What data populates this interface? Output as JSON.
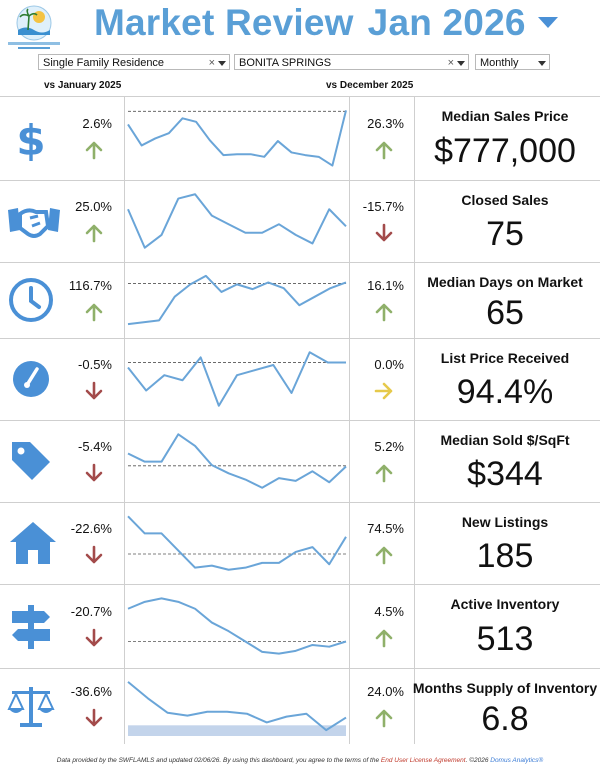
{
  "header": {
    "title_part1": "Market Review",
    "title_part2": "Jan 2026",
    "logo_text": "BONITA SPRINGS ESTERO REALTORS"
  },
  "filters": {
    "property_type": "Single Family Residence",
    "area": "BONITA SPRINGS",
    "period": "Monthly",
    "clear_glyph": "×"
  },
  "columns": {
    "left": "vs January 2025",
    "right": "vs December 2025"
  },
  "colors": {
    "title": "#5a9fd6",
    "icon": "#4a90d6",
    "up_arrow": "#8fb06a",
    "down_arrow": "#a34b4b",
    "neutral_arrow": "#e6c94a",
    "sparkline": "#6aa5d8"
  },
  "metrics": [
    {
      "label": "Median Sales Price",
      "value": "$777,000",
      "yoy": "2.6%",
      "yoy_dir": "up",
      "mom": "26.3%",
      "mom_dir": "up",
      "icon": "dollar-icon",
      "spark": [
        64,
        40,
        48,
        54,
        71,
        67,
        46,
        29,
        30,
        30,
        27,
        45,
        32,
        29,
        27,
        17,
        80
      ],
      "ref": 79
    },
    {
      "label": "Closed Sales",
      "value": "75",
      "yoy": "25.0%",
      "yoy_dir": "up",
      "mom": "-15.7%",
      "mom_dir": "down",
      "icon": "handshake-icon",
      "spark": [
        40,
        22,
        28,
        45,
        47,
        37,
        33,
        29,
        29,
        33,
        28,
        24,
        40,
        32
      ],
      "ref": null
    },
    {
      "label": "Median Days on Market",
      "value": "65",
      "yoy": "116.7%",
      "yoy_dir": "up",
      "mom": "16.1%",
      "mom_dir": "up",
      "icon": "clock-icon",
      "spark": [
        4,
        6,
        8,
        33,
        46,
        55,
        38,
        46,
        41,
        48,
        42,
        24,
        33,
        42,
        48
      ],
      "ref": 47
    },
    {
      "label": "List Price Received",
      "value": "94.4%",
      "yoy": "-0.5%",
      "yoy_dir": "down",
      "mom": "0.0%",
      "mom_dir": "neutral",
      "icon": "gauge-icon",
      "spark": [
        94.2,
        93.3,
        93.9,
        93.7,
        94.6,
        92.7,
        93.9,
        94.1,
        94.3,
        93.2,
        94.8,
        94.4,
        94.4
      ],
      "ref": 94.4
    },
    {
      "label": "Median Sold $/SqFt",
      "value": "$344",
      "yoy": "-5.4%",
      "yoy_dir": "down",
      "mom": "5.2%",
      "mom_dir": "up",
      "icon": "price-tag-icon",
      "spark": [
        362,
        350,
        350,
        390,
        373,
        345,
        333,
        324,
        312,
        326,
        322,
        336,
        320,
        343
      ],
      "ref": 344
    },
    {
      "label": "New Listings",
      "value": "185",
      "yoy": "-22.6%",
      "yoy_dir": "down",
      "mom": "74.5%",
      "mom_dir": "up",
      "icon": "house-icon",
      "spark": [
        240,
        215,
        215,
        190,
        165,
        168,
        162,
        165,
        172,
        172,
        188,
        195,
        170,
        210
      ],
      "ref": 185
    },
    {
      "label": "Active Inventory",
      "value": "513",
      "yoy": "-20.7%",
      "yoy_dir": "down",
      "mom": "4.5%",
      "mom_dir": "up",
      "icon": "signpost-icon",
      "spark": [
        640,
        660,
        670,
        660,
        640,
        600,
        575,
        545,
        515,
        510,
        518,
        535,
        530,
        545
      ],
      "ref": 545
    },
    {
      "label": "Months Supply of Inventory",
      "value": "6.8",
      "yoy": "-36.6%",
      "yoy_dir": "down",
      "mom": "24.0%",
      "mom_dir": "up",
      "icon": "scales-icon",
      "spark": [
        10.5,
        8.8,
        7.3,
        7.0,
        7.4,
        7.4,
        7.2,
        6.3,
        6.9,
        7.2,
        5.5,
        6.8
      ],
      "ref": null,
      "shade_max": 6.0
    }
  ],
  "footer": {
    "text1": "Data provided by the SWFLAMLS and updated 02/06/26.  By using this dashboard, you agree to the terms of the ",
    "link": "End User License Agreement",
    "text2": ".  ©2026 ",
    "brand": "Domus Analytics®"
  }
}
